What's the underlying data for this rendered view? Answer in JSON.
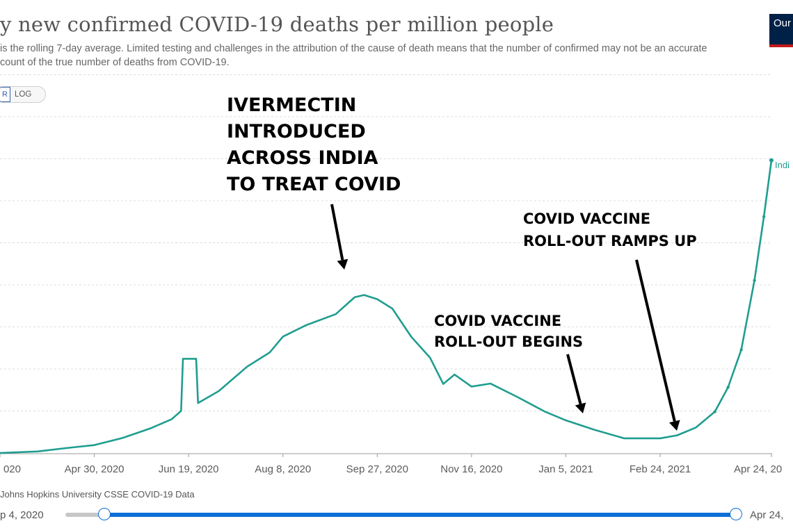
{
  "header": {
    "title": "y new confirmed COVID-19 deaths per million people",
    "subtitle": "is the rolling 7-day average. Limited testing and challenges in the attribution of the cause of death means that the number of confirmed may not be an accurate count of the true number of deaths from COVID-19.",
    "logo_text": "Our World in Data"
  },
  "toggle": {
    "linear_label": "R",
    "log_label": "LOG"
  },
  "source_text": "Johns Hopkins University CSSE COVID-19 Data",
  "timeline": {
    "start_label": "p 4, 2020",
    "end_label": "Apr 24,",
    "start_fraction": 0.058,
    "end_fraction": 1.0
  },
  "chart_data": {
    "type": "line",
    "title": "y new confirmed COVID-19 deaths per million people",
    "y_scale": "linear",
    "grid": "horizontal dashed",
    "x_tick_labels": [
      "020",
      "Apr 30, 2020",
      "Jun 19, 2020",
      "Aug 8, 2020",
      "Sep 27, 2020",
      "Nov 16, 2020",
      "Jan 5, 2021",
      "Feb 24, 2021",
      "Apr 24, 20"
    ],
    "x_tick_dates": [
      "2020-03-11",
      "2020-04-30",
      "2020-06-19",
      "2020-08-08",
      "2020-09-27",
      "2020-11-16",
      "2021-01-05",
      "2021-02-24",
      "2021-04-24"
    ],
    "ylim": [
      0,
      1.0
    ],
    "series": [
      {
        "name": "Indi",
        "color": "#1f9d8f",
        "points": [
          [
            "2020-03-11",
            0.0
          ],
          [
            "2020-03-31",
            0.004
          ],
          [
            "2020-04-15",
            0.013
          ],
          [
            "2020-04-30",
            0.021
          ],
          [
            "2020-05-15",
            0.04
          ],
          [
            "2020-05-30",
            0.066
          ],
          [
            "2020-06-10",
            0.09
          ],
          [
            "2020-06-15",
            0.112
          ],
          [
            "2020-06-16",
            0.251
          ],
          [
            "2020-06-23",
            0.251
          ],
          [
            "2020-06-24",
            0.133
          ],
          [
            "2020-07-05",
            0.165
          ],
          [
            "2020-07-20",
            0.23
          ],
          [
            "2020-08-01",
            0.268
          ],
          [
            "2020-08-08",
            0.31
          ],
          [
            "2020-08-20",
            0.34
          ],
          [
            "2020-09-05",
            0.37
          ],
          [
            "2020-09-15",
            0.415
          ],
          [
            "2020-09-20",
            0.421
          ],
          [
            "2020-09-27",
            0.41
          ],
          [
            "2020-10-05",
            0.385
          ],
          [
            "2020-10-15",
            0.31
          ],
          [
            "2020-10-25",
            0.254
          ],
          [
            "2020-11-01",
            0.184
          ],
          [
            "2020-11-07",
            0.209
          ],
          [
            "2020-11-16",
            0.177
          ],
          [
            "2020-11-26",
            0.185
          ],
          [
            "2020-12-10",
            0.15
          ],
          [
            "2020-12-25",
            0.11
          ],
          [
            "2021-01-05",
            0.087
          ],
          [
            "2021-01-20",
            0.062
          ],
          [
            "2021-02-05",
            0.039
          ],
          [
            "2021-02-24",
            0.039
          ],
          [
            "2021-03-05",
            0.047
          ],
          [
            "2021-03-15",
            0.068
          ],
          [
            "2021-03-25",
            0.11
          ],
          [
            "2021-04-01",
            0.175
          ],
          [
            "2021-04-08",
            0.275
          ],
          [
            "2021-04-15",
            0.46
          ],
          [
            "2021-04-20",
            0.63
          ],
          [
            "2021-04-24",
            0.78
          ]
        ]
      }
    ],
    "annotations": [
      {
        "lines": [
          "IVERMECTIN",
          "INTRODUCED",
          "ACROSS INDIA",
          "TO TREAT COVID"
        ],
        "points_to": "2020-09-20"
      },
      {
        "lines": [
          "COVID VACCINE",
          "ROLL-OUT RAMPS UP"
        ],
        "points_to": "2021-03-01"
      },
      {
        "lines": [
          "COVID VACCINE",
          "ROLL-OUT BEGINS"
        ],
        "points_to": "2021-01-16"
      }
    ]
  }
}
